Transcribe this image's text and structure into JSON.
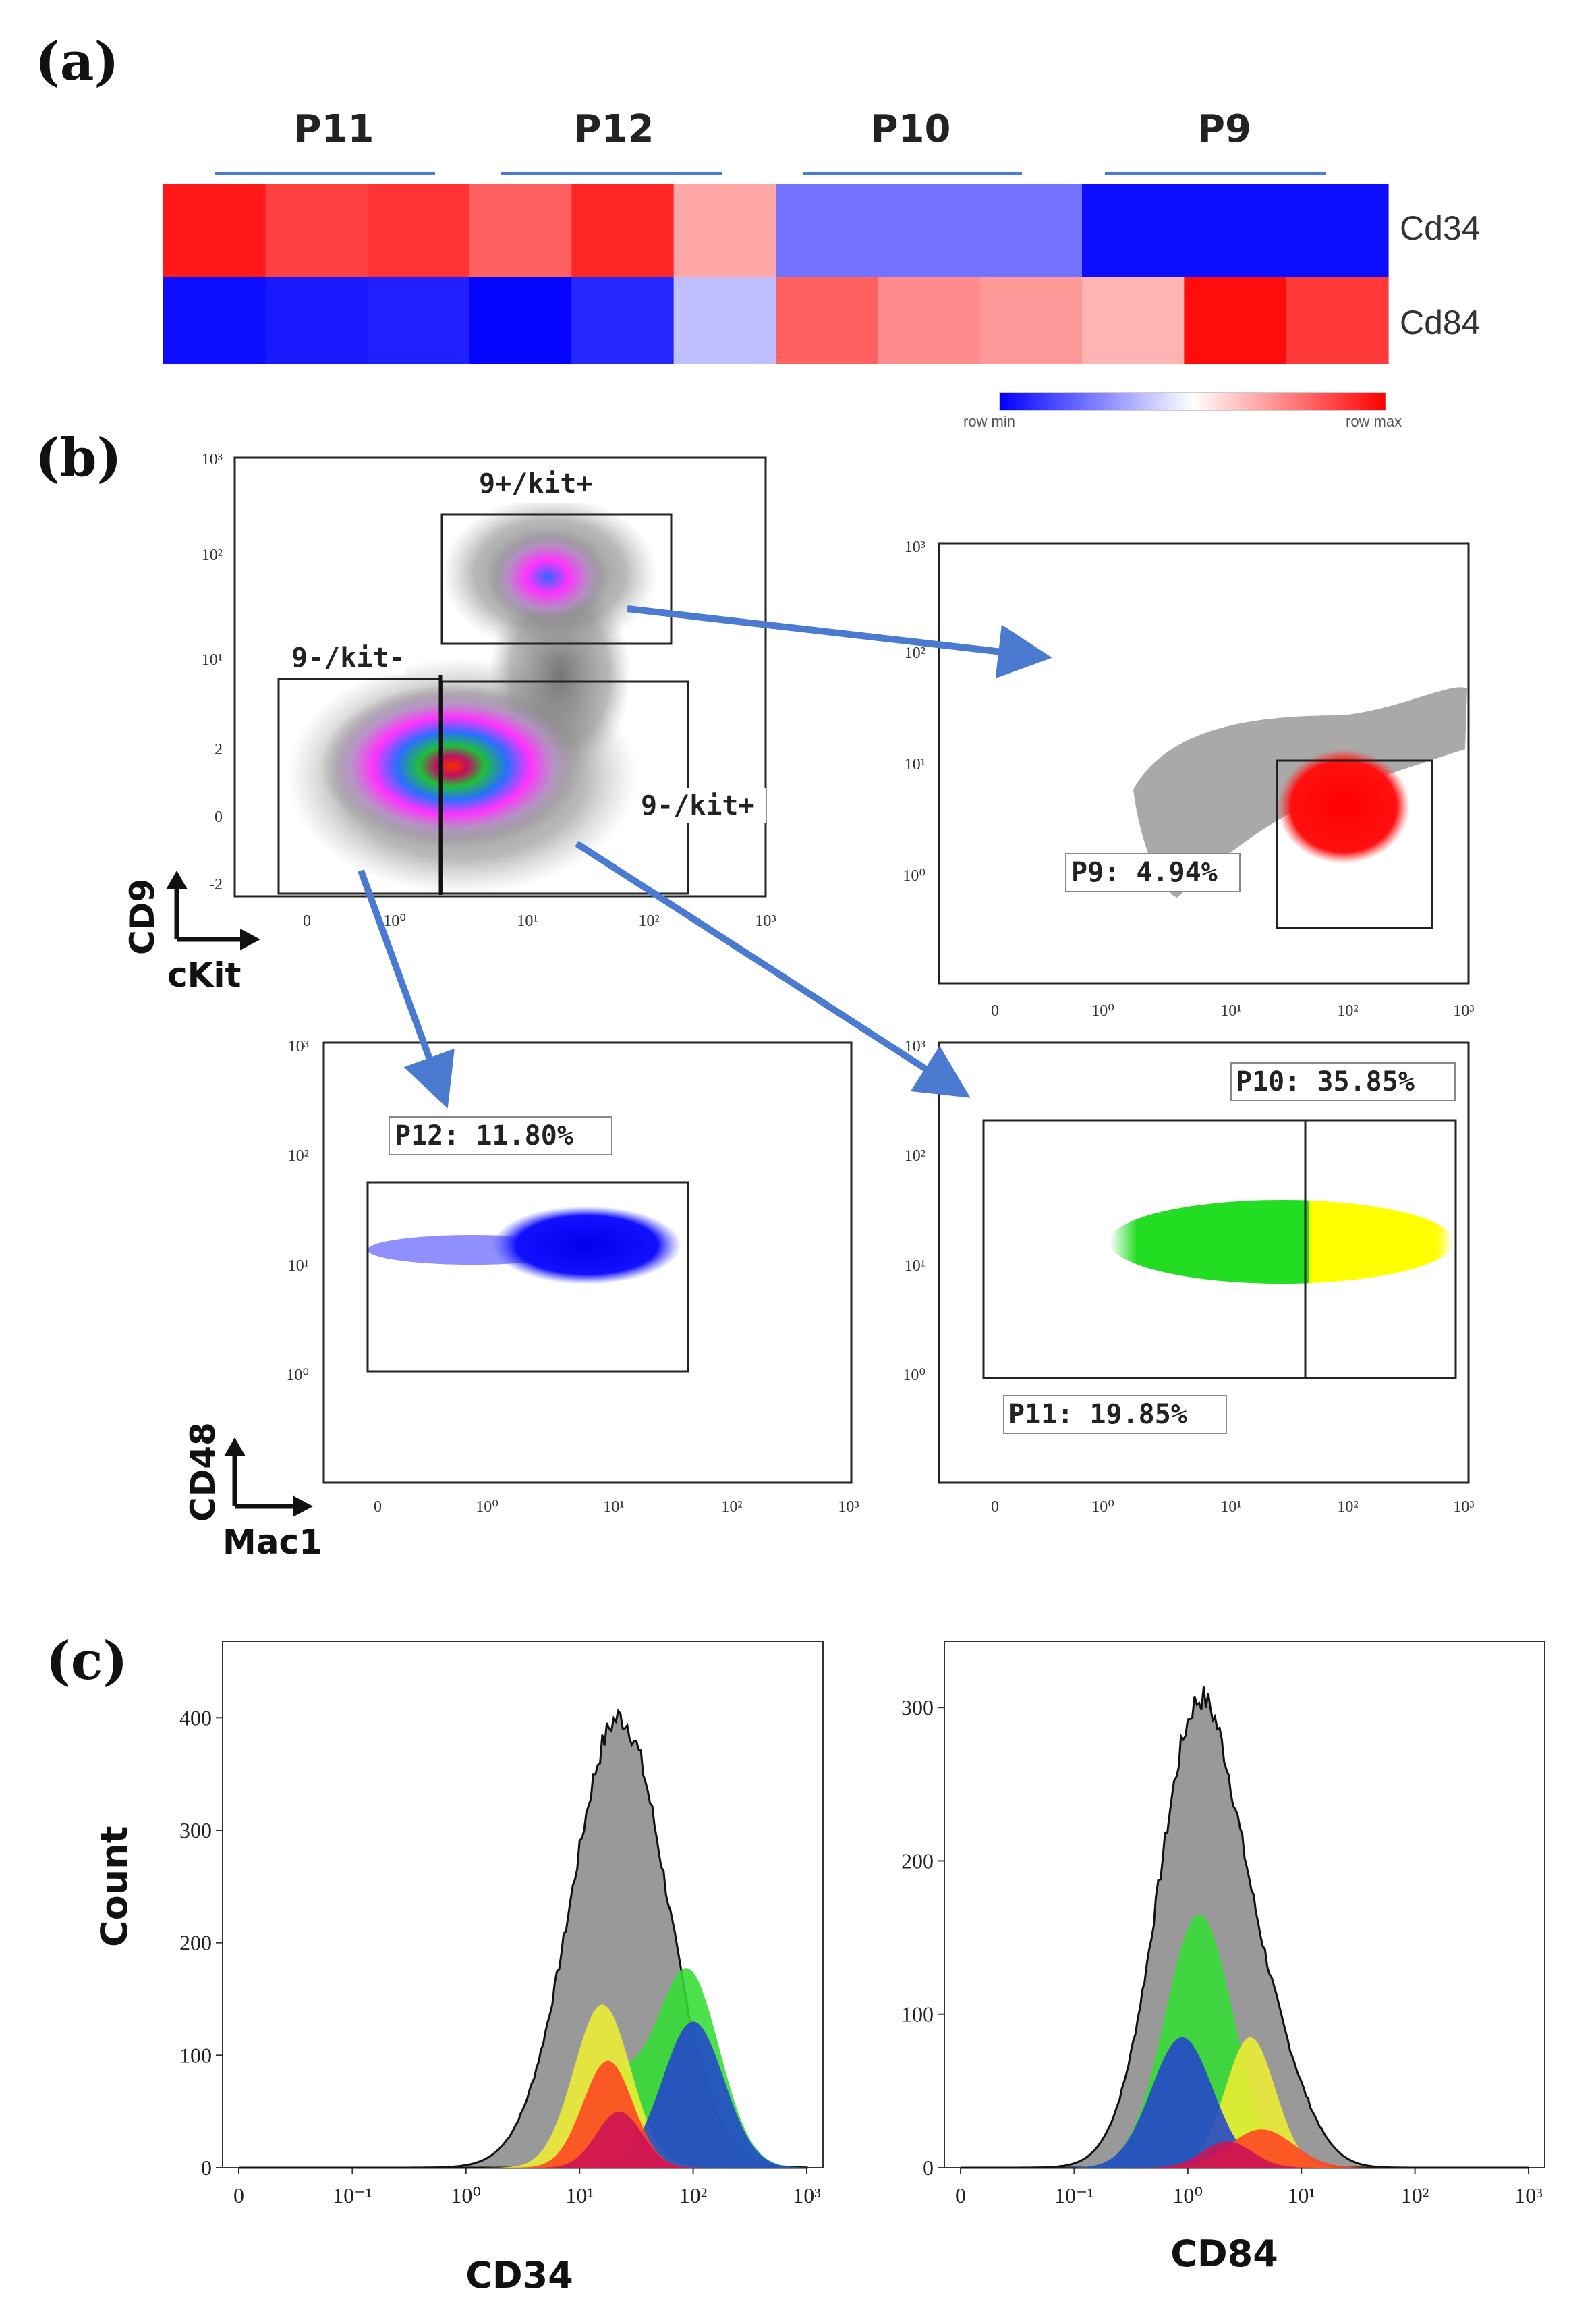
{
  "panels": {
    "a": "(a)",
    "b": "(b)",
    "c": "(c)"
  },
  "chart_data": [
    {
      "type": "heatmap",
      "panel": "(a)",
      "group_labels": [
        "P11",
        "P12",
        "P10",
        "P9"
      ],
      "rows": [
        "Cd34",
        "Cd84"
      ],
      "columns": 12,
      "values": [
        [
          0.9,
          0.75,
          0.8,
          0.62,
          0.85,
          0.35,
          -0.55,
          -0.55,
          -0.55,
          -0.95,
          -0.95,
          -0.95
        ],
        [
          -0.95,
          -0.9,
          -0.88,
          -0.98,
          -0.85,
          -0.25,
          0.62,
          0.45,
          0.4,
          0.3,
          0.95,
          0.78
        ]
      ],
      "legend": {
        "min_label": "row min",
        "max_label": "row max"
      }
    },
    {
      "type": "scatter",
      "panel": "(b)",
      "name": "Gating plots",
      "plots": [
        {
          "id": "main",
          "xlabel": "cKit",
          "ylabel": "CD9",
          "x_ticks": [
            "0",
            "10⁰",
            "10¹",
            "10²",
            "10³"
          ],
          "y_ticks": [
            "10³",
            "10²",
            "10¹",
            "2",
            "0",
            "-2"
          ],
          "gates": [
            "9+/kit+",
            "9-/kit-",
            "9-/kit+"
          ]
        },
        {
          "id": "p9",
          "gate_label": "P9: 4.94%",
          "gate_percent": 4.94,
          "x_ticks": [
            "0",
            "10⁰",
            "10¹",
            "10²",
            "10³"
          ],
          "y_ticks": [
            "10³",
            "10²",
            "10¹",
            "10⁰"
          ],
          "color": "#ff1a1a"
        },
        {
          "id": "p12",
          "xlabel": "Mac1",
          "ylabel": "CD48",
          "gate_label": "P12: 11.80%",
          "gate_percent": 11.8,
          "x_ticks": [
            "0",
            "10⁰",
            "10¹",
            "10²",
            "10³"
          ],
          "y_ticks": [
            "10³",
            "10²",
            "10¹",
            "10⁰"
          ],
          "color": "#1a1aff"
        },
        {
          "id": "p10p11",
          "gate_labels": [
            "P10: 35.85%",
            "P11: 19.85%"
          ],
          "gate_percents": [
            35.85,
            19.85
          ],
          "x_ticks": [
            "0",
            "10⁰",
            "10¹",
            "10²",
            "10³"
          ],
          "y_ticks": [
            "10³",
            "10²",
            "10¹",
            "10⁰"
          ],
          "colors": [
            "#22e022",
            "#ffff22"
          ]
        }
      ]
    },
    {
      "type": "area",
      "panel": "(c)",
      "title": "CD34",
      "xlabel": "CD34",
      "ylabel": "Count",
      "ylim": [
        0,
        450
      ],
      "y_ticks": [
        0,
        100,
        200,
        300,
        400
      ],
      "x_tick_labels": [
        "0",
        "10⁻¹",
        "10⁰",
        "10¹",
        "10²",
        "10³"
      ],
      "x_log_positions": [
        -2,
        -1,
        0,
        1,
        2,
        3
      ],
      "series": [
        {
          "name": "total",
          "color": "#999999",
          "peaks": [
            {
              "mu": 1.35,
              "sigma": 0.42,
              "amp": 400
            }
          ]
        },
        {
          "name": "green",
          "color": "#33dd33",
          "peaks": [
            {
              "mu": 1.95,
              "sigma": 0.28,
              "amp": 175
            },
            {
              "mu": 1.3,
              "sigma": 0.25,
              "amp": 70
            }
          ]
        },
        {
          "name": "yellow",
          "color": "#eeee33",
          "peaks": [
            {
              "mu": 1.2,
              "sigma": 0.25,
              "amp": 145
            }
          ]
        },
        {
          "name": "blue",
          "color": "#2244cc",
          "peaks": [
            {
              "mu": 2.0,
              "sigma": 0.27,
              "amp": 130
            }
          ]
        },
        {
          "name": "orange",
          "color": "#ff4422",
          "peaks": [
            {
              "mu": 1.25,
              "sigma": 0.22,
              "amp": 95
            }
          ]
        },
        {
          "name": "crimson",
          "color": "#cc1155",
          "peaks": [
            {
              "mu": 1.35,
              "sigma": 0.2,
              "amp": 50
            }
          ]
        }
      ]
    },
    {
      "type": "area",
      "panel": "(c)",
      "title": "CD84",
      "xlabel": "CD84",
      "ylabel": "",
      "ylim": [
        0,
        330
      ],
      "y_ticks": [
        0,
        100,
        200,
        300
      ],
      "x_tick_labels": [
        "0",
        "10⁻¹",
        "10⁰",
        "10¹",
        "10²",
        "10³"
      ],
      "x_log_positions": [
        -2,
        -1,
        0,
        1,
        2,
        3
      ],
      "series": [
        {
          "name": "total",
          "color": "#999999",
          "peaks": [
            {
              "mu": 0.1,
              "sigma": 0.36,
              "amp": 300
            },
            {
              "mu": 0.75,
              "sigma": 0.3,
              "amp": 60
            }
          ]
        },
        {
          "name": "green",
          "color": "#33dd33",
          "peaks": [
            {
              "mu": 0.1,
              "sigma": 0.3,
              "amp": 165
            }
          ]
        },
        {
          "name": "yellow",
          "color": "#eeee33",
          "peaks": [
            {
              "mu": 0.55,
              "sigma": 0.22,
              "amp": 85
            }
          ]
        },
        {
          "name": "blue",
          "color": "#2244cc",
          "peaks": [
            {
              "mu": -0.05,
              "sigma": 0.27,
              "amp": 85
            }
          ]
        },
        {
          "name": "orange",
          "color": "#ff4422",
          "peaks": [
            {
              "mu": 0.65,
              "sigma": 0.28,
              "amp": 25
            }
          ]
        },
        {
          "name": "crimson",
          "color": "#cc1155",
          "peaks": [
            {
              "mu": 0.35,
              "sigma": 0.22,
              "amp": 17
            }
          ]
        }
      ]
    }
  ]
}
